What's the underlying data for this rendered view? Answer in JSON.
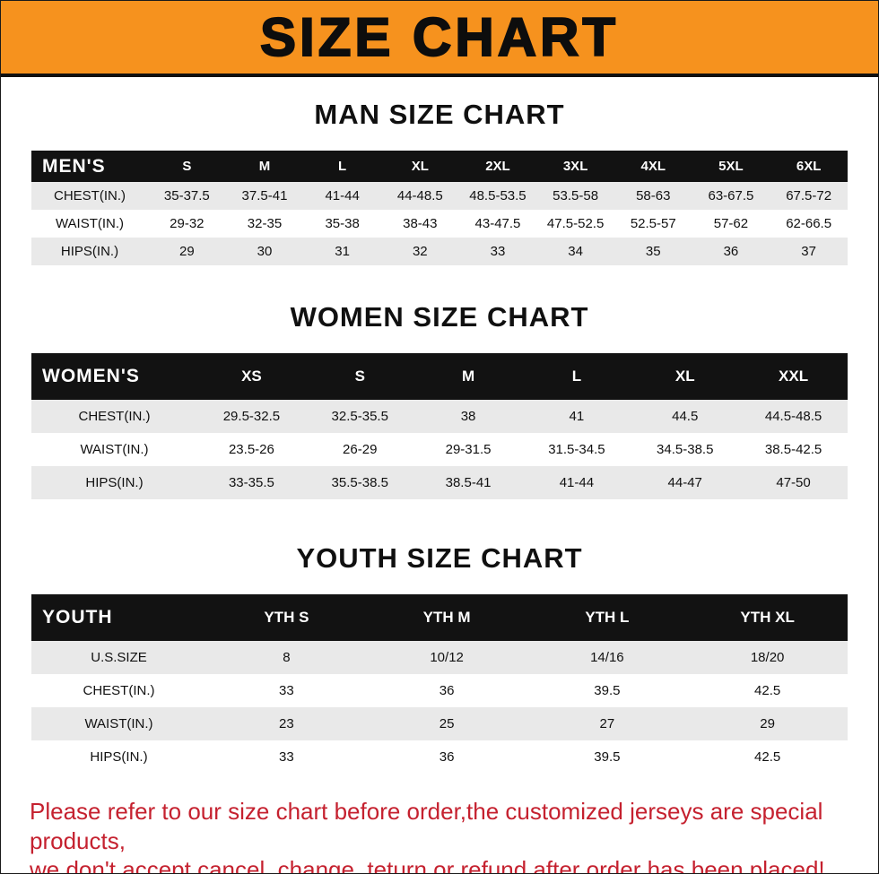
{
  "banner": {
    "title": "SIZE CHART"
  },
  "colors": {
    "banner_bg": "#F6921E",
    "table_header_bg": "#121212",
    "alt_row_bg": "#e9e9e9",
    "footer_text": "#C5212F"
  },
  "men": {
    "heading": "MAN SIZE CHART",
    "label": "MEN'S",
    "columns": [
      "S",
      "M",
      "L",
      "XL",
      "2XL",
      "3XL",
      "4XL",
      "5XL",
      "6XL"
    ],
    "rows": [
      {
        "label": "CHEST(IN.)",
        "values": [
          "35-37.5",
          "37.5-41",
          "41-44",
          "44-48.5",
          "48.5-53.5",
          "53.5-58",
          "58-63",
          "63-67.5",
          "67.5-72"
        ]
      },
      {
        "label": "WAIST(IN.)",
        "values": [
          "29-32",
          "32-35",
          "35-38",
          "38-43",
          "43-47.5",
          "47.5-52.5",
          "52.5-57",
          "57-62",
          "62-66.5"
        ]
      },
      {
        "label": "HIPS(IN.)",
        "values": [
          "29",
          "30",
          "31",
          "32",
          "33",
          "34",
          "35",
          "36",
          "37"
        ]
      }
    ]
  },
  "women": {
    "heading": "WOMEN SIZE CHART",
    "label": "WOMEN'S",
    "columns": [
      "XS",
      "S",
      "M",
      "L",
      "XL",
      "XXL"
    ],
    "rows": [
      {
        "label": "CHEST(IN.)",
        "values": [
          "29.5-32.5",
          "32.5-35.5",
          "38",
          "41",
          "44.5",
          "44.5-48.5"
        ]
      },
      {
        "label": "WAIST(IN.)",
        "values": [
          "23.5-26",
          "26-29",
          "29-31.5",
          "31.5-34.5",
          "34.5-38.5",
          "38.5-42.5"
        ]
      },
      {
        "label": "HIPS(IN.)",
        "values": [
          "33-35.5",
          "35.5-38.5",
          "38.5-41",
          "41-44",
          "44-47",
          "47-50"
        ]
      }
    ]
  },
  "youth": {
    "heading": "YOUTH SIZE CHART",
    "label": "YOUTH",
    "columns": [
      "YTH S",
      "YTH M",
      "YTH L",
      "YTH XL"
    ],
    "rows": [
      {
        "label": "U.S.SIZE",
        "values": [
          "8",
          "10/12",
          "14/16",
          "18/20"
        ]
      },
      {
        "label": "CHEST(IN.)",
        "values": [
          "33",
          "36",
          "39.5",
          "42.5"
        ]
      },
      {
        "label": "WAIST(IN.)",
        "values": [
          "23",
          "25",
          "27",
          "29"
        ]
      },
      {
        "label": "HIPS(IN.)",
        "values": [
          "33",
          "36",
          "39.5",
          "42.5"
        ]
      }
    ]
  },
  "footer": {
    "line1": "Please refer to our size chart before order,the customized jerseys are special products,",
    "line2": "we don't accept cancel, change, teturn or refund after order has been placed!"
  }
}
